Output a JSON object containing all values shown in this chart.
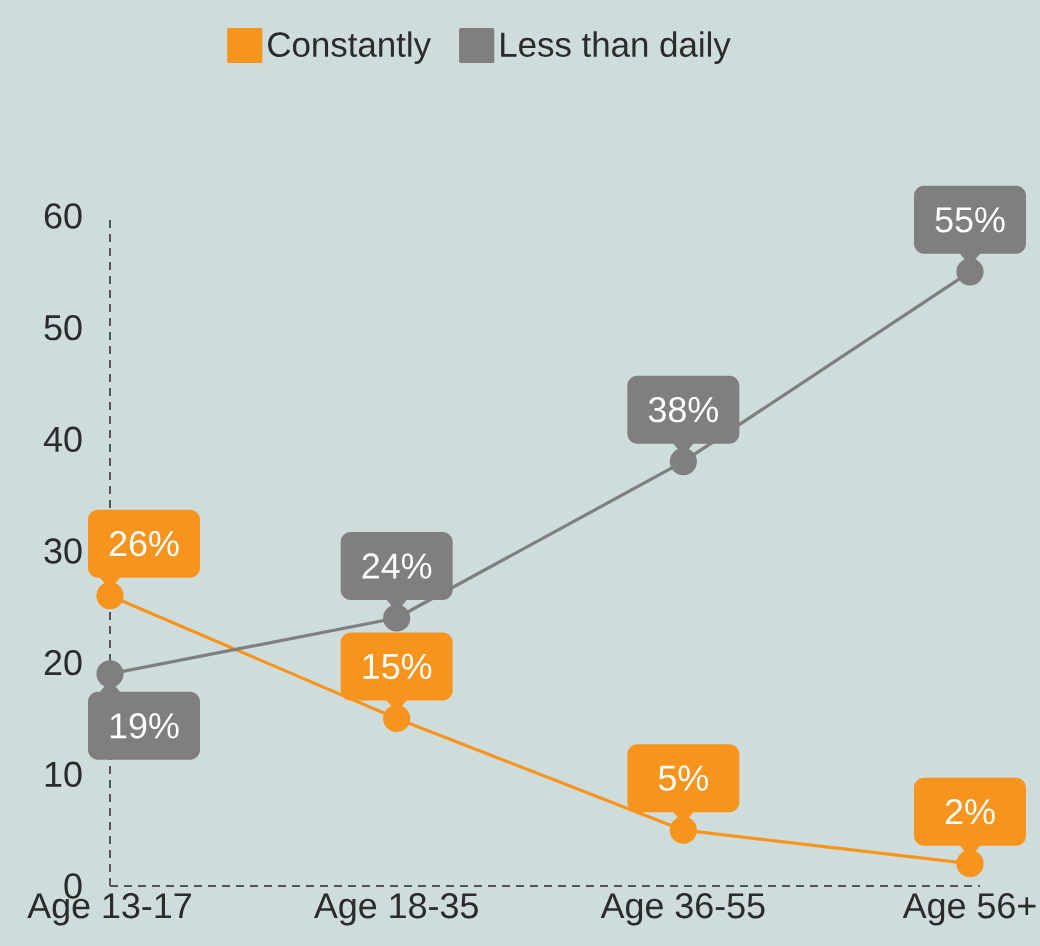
{
  "chart_data": {
    "type": "line",
    "categories": [
      "Age 13-17",
      "Age 18-35",
      "Age 36-55",
      "Age 56+"
    ],
    "series": [
      {
        "name": "Constantly",
        "color": "#f7941d",
        "values": [
          26,
          15,
          5,
          2
        ],
        "value_labels": [
          "26%",
          "15%",
          "5%",
          "2%"
        ]
      },
      {
        "name": "Less than daily",
        "color": "#7f7f7f",
        "values": [
          19,
          24,
          38,
          55
        ],
        "value_labels": [
          "19%",
          "24%",
          "38%",
          "55%"
        ]
      }
    ],
    "ylim": [
      0,
      60
    ],
    "yticks": [
      0,
      10,
      20,
      30,
      40,
      50,
      60
    ],
    "legend": "top",
    "marker": "circle",
    "grid": false
  }
}
